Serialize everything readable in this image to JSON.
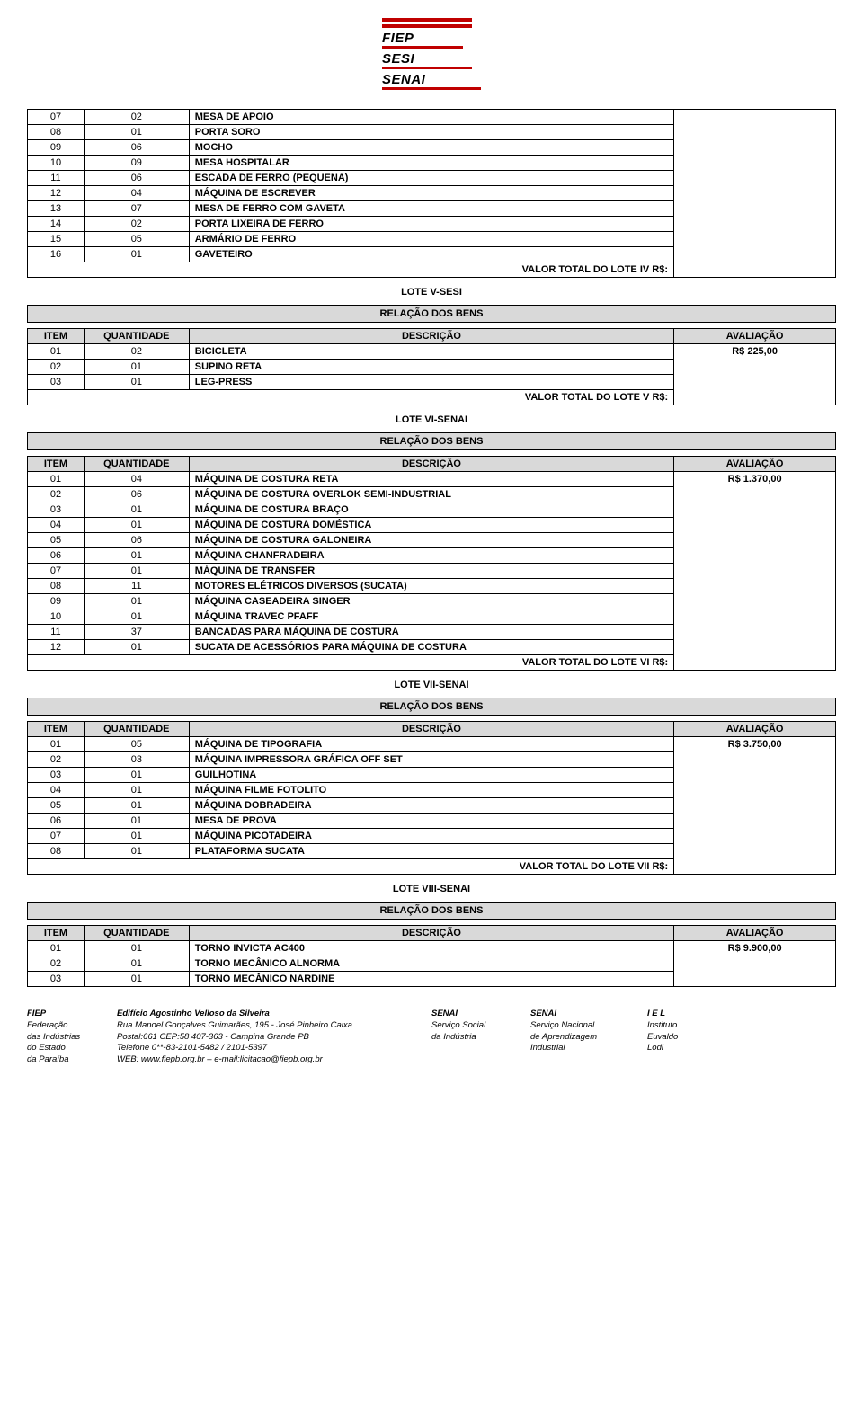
{
  "logo": {
    "lines": [
      "FIEP",
      "SESI",
      "SENAI"
    ],
    "bar_color": "#c00000"
  },
  "tables": {
    "cont": {
      "rows": [
        [
          "07",
          "02",
          "MESA DE APOIO"
        ],
        [
          "08",
          "01",
          "PORTA SORO"
        ],
        [
          "09",
          "06",
          "MOCHO"
        ],
        [
          "10",
          "09",
          "MESA HOSPITALAR"
        ],
        [
          "11",
          "06",
          "ESCADA DE FERRO (PEQUENA)"
        ],
        [
          "12",
          "04",
          "MÁQUINA DE ESCREVER"
        ],
        [
          "13",
          "07",
          "MESA DE FERRO COM GAVETA"
        ],
        [
          "14",
          "02",
          "PORTA LIXEIRA DE FERRO"
        ],
        [
          "15",
          "05",
          "ARMÁRIO DE FERRO"
        ],
        [
          "16",
          "01",
          "GAVETEIRO"
        ]
      ],
      "total_label": "VALOR TOTAL DO LOTE IV R$:"
    },
    "lote5": {
      "title": "LOTE V-SESI",
      "rel": "RELAÇÃO DOS BENS",
      "headers": [
        "ITEM",
        "QUANTIDADE",
        "DESCRIÇÃO",
        "AVALIAÇÃO"
      ],
      "rows": [
        [
          "01",
          "02",
          "BICICLETA"
        ],
        [
          "02",
          "01",
          "SUPINO RETA"
        ],
        [
          "03",
          "01",
          "LEG-PRESS"
        ]
      ],
      "avaliacao": "R$ 225,00",
      "total_label": "VALOR TOTAL DO LOTE V R$:"
    },
    "lote6": {
      "title": "LOTE VI-SENAI",
      "rel": "RELAÇÃO DOS BENS",
      "headers": [
        "ITEM",
        "QUANTIDADE",
        "DESCRIÇÃO",
        "AVALIAÇÃO"
      ],
      "rows": [
        [
          "01",
          "04",
          "MÁQUINA DE COSTURA RETA"
        ],
        [
          "02",
          "06",
          "MÁQUINA DE COSTURA OVERLOK SEMI-INDUSTRIAL"
        ],
        [
          "03",
          "01",
          "MÁQUINA DE COSTURA BRAÇO"
        ],
        [
          "04",
          "01",
          "MÁQUINA DE COSTURA DOMÉSTICA"
        ],
        [
          "05",
          "06",
          "MÁQUINA DE COSTURA GALONEIRA"
        ],
        [
          "06",
          "01",
          "MÁQUINA CHANFRADEIRA"
        ],
        [
          "07",
          "01",
          "MÁQUINA DE TRANSFER"
        ],
        [
          "08",
          "11",
          "MOTORES ELÉTRICOS DIVERSOS (SUCATA)"
        ],
        [
          "09",
          "01",
          "MÁQUINA CASEADEIRA SINGER"
        ],
        [
          "10",
          "01",
          "MÁQUINA TRAVEC PFAFF"
        ],
        [
          "11",
          "37",
          "BANCADAS PARA MÁQUINA DE COSTURA"
        ],
        [
          "12",
          "01",
          "SUCATA DE ACESSÓRIOS PARA MÁQUINA DE COSTURA"
        ]
      ],
      "avaliacao": "R$ 1.370,00",
      "total_label": "VALOR TOTAL DO LOTE VI R$:"
    },
    "lote7": {
      "title": "LOTE VII-SENAI",
      "rel": "RELAÇÃO DOS BENS",
      "headers": [
        "ITEM",
        "QUANTIDADE",
        "DESCRIÇÃO",
        "AVALIAÇÃO"
      ],
      "rows": [
        [
          "01",
          "05",
          "MÁQUINA DE TIPOGRAFIA"
        ],
        [
          "02",
          "03",
          "MÁQUINA IMPRESSORA GRÁFICA OFF SET"
        ],
        [
          "03",
          "01",
          "GUILHOTINA"
        ],
        [
          "04",
          "01",
          "MÁQUINA FILME FOTOLITO"
        ],
        [
          "05",
          "01",
          "MÁQUINA DOBRADEIRA"
        ],
        [
          "06",
          "01",
          "MESA DE PROVA"
        ],
        [
          "07",
          "01",
          "MÁQUINA PICOTADEIRA"
        ],
        [
          "08",
          "01",
          "PLATAFORMA SUCATA"
        ]
      ],
      "avaliacao": "R$ 3.750,00",
      "total_label": "VALOR TOTAL DO LOTE VII R$:"
    },
    "lote8": {
      "title": "LOTE VIII-SENAI",
      "rel": "RELAÇÃO DOS BENS",
      "headers": [
        "ITEM",
        "QUANTIDADE",
        "DESCRIÇÃO",
        "AVALIAÇÃO"
      ],
      "rows": [
        [
          "01",
          "01",
          "TORNO INVICTA AC400"
        ],
        [
          "02",
          "01",
          "TORNO MECÂNICO ALNORMA"
        ],
        [
          "03",
          "01",
          "TORNO MECÂNICO NARDINE"
        ]
      ],
      "avaliacao": "R$ 9.900,00"
    }
  },
  "footer": {
    "c1": {
      "l1": "FIEP",
      "l2": "Federação",
      "l3": "das Indústrias",
      "l4": "do Estado",
      "l5": "da Paraíba"
    },
    "c2": {
      "l1": "Edifício Agostinho Velloso da Silveira",
      "l2": "Rua Manoel Gonçalves Guimarães, 195 - José Pinheiro Caixa",
      "l3": "Postal:661 CEP:58 407-363 - Campina Grande PB",
      "l4": "Telefone 0**-83-2101-5482 / 2101-5397",
      "l5": "WEB: www.fiepb.org.br – e-mail:licitacao@fiepb.org.br"
    },
    "c3": {
      "l1": "SENAI",
      "l2": "Serviço Social",
      "l3": "da Indústria"
    },
    "c4": {
      "l1": "SENAI",
      "l2": "Serviço Nacional",
      "l3": "de Aprendizagem",
      "l4": "Industrial"
    },
    "c5": {
      "l1": "I E L",
      "l2": "Instituto",
      "l3": "Euvaldo",
      "l4": "Lodi"
    }
  }
}
